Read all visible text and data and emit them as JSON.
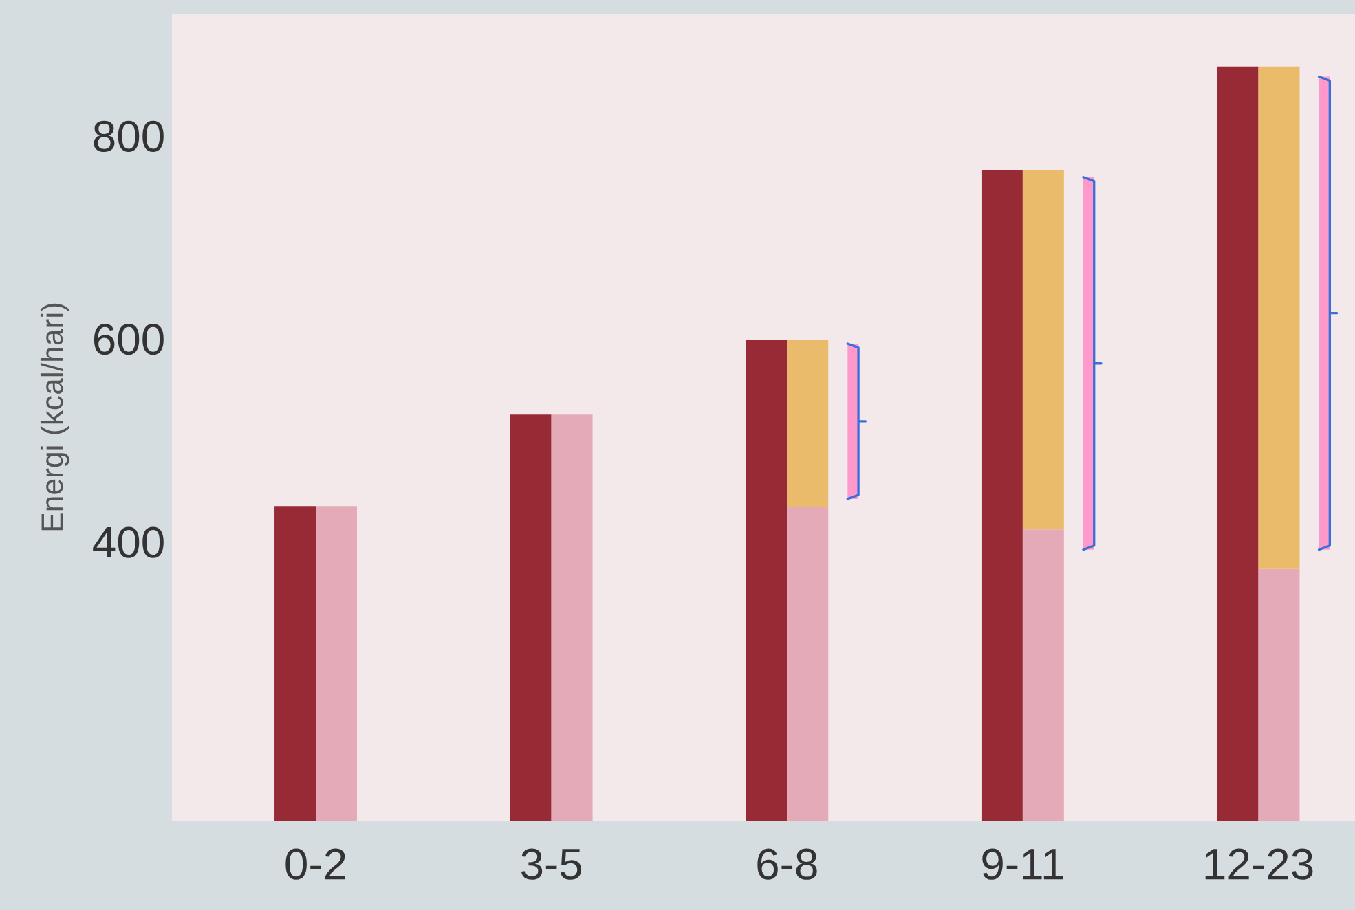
{
  "chart_data": [
    {
      "type": "bar",
      "ylabel": "Energi (kcal/hari)",
      "categories": [
        "0-2",
        "3-5",
        "6-8",
        "9-11",
        "12-23"
      ],
      "ylim": [
        125,
        920
      ],
      "yticks": [
        400,
        600,
        800
      ],
      "grid": false,
      "series": [
        {
          "color": "#972a34",
          "values": [
            435,
            525,
            599,
            766,
            868
          ]
        },
        {
          "color": "#ff99cc",
          "values": [
            null,
            null,
            153,
            367,
            466
          ],
          "base": [
            null,
            null,
            442,
            392,
            392
          ]
        }
      ]
    },
    {
      "type": "bar",
      "categories": [
        null,
        null,
        null,
        null,
        null
      ],
      "ylim": [
        125,
        920
      ],
      "yticks": [
        400,
        600,
        800
      ],
      "grid": false,
      "stacked": true,
      "tick_labels": false,
      "series": [
        {
          "color": "#e4aab7",
          "values": [
            435,
            525,
            434,
            412,
            373
          ]
        },
        {
          "color": "#eabb6a",
          "values": [
            null,
            null,
            165,
            354,
            495
          ]
        }
      ]
    }
  ]
}
